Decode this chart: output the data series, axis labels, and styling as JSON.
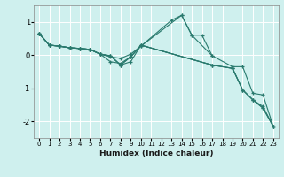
{
  "xlabel": "Humidex (Indice chaleur)",
  "bg_color": "#cff0ee",
  "grid_color": "#ffffff",
  "line_color": "#2a7a6e",
  "xlim": [
    -0.5,
    23.5
  ],
  "ylim": [
    -2.5,
    1.5
  ],
  "yticks": [
    -2,
    -1,
    0,
    1
  ],
  "xtick_labels": [
    "0",
    "1",
    "2",
    "3",
    "4",
    "5",
    "6",
    "7",
    "8",
    "9",
    "10",
    "11",
    "12",
    "13",
    "14",
    "15",
    "16",
    "17",
    "18",
    "19",
    "20",
    "21",
    "22",
    "23"
  ],
  "xtick_vals": [
    0,
    1,
    2,
    3,
    4,
    5,
    6,
    7,
    8,
    9,
    10,
    11,
    12,
    13,
    14,
    15,
    16,
    17,
    18,
    19,
    20,
    21,
    22,
    23
  ],
  "series": [
    {
      "x": [
        0,
        1,
        2,
        3,
        4,
        5,
        6,
        7,
        8,
        9,
        10,
        13,
        14,
        15,
        16,
        17
      ],
      "y": [
        0.65,
        0.3,
        0.27,
        0.22,
        0.2,
        0.17,
        0.03,
        -0.05,
        -0.1,
        0.03,
        0.27,
        1.05,
        1.2,
        0.6,
        0.6,
        -0.02
      ]
    },
    {
      "x": [
        0,
        1,
        2,
        3,
        4,
        5,
        6,
        7,
        8,
        9,
        10,
        14,
        15,
        17,
        19,
        20,
        21,
        22,
        23
      ],
      "y": [
        0.65,
        0.3,
        0.27,
        0.22,
        0.2,
        0.17,
        0.03,
        -0.2,
        -0.25,
        -0.05,
        0.27,
        1.2,
        0.6,
        -0.02,
        -0.35,
        -0.35,
        -1.15,
        -1.2,
        -2.15
      ]
    },
    {
      "x": [
        0,
        1,
        2,
        3,
        4,
        5,
        6,
        7,
        8,
        9,
        10,
        17,
        19,
        20,
        21,
        22,
        23
      ],
      "y": [
        0.65,
        0.3,
        0.27,
        0.22,
        0.2,
        0.17,
        0.03,
        -0.02,
        -0.3,
        -0.2,
        0.3,
        -0.3,
        -0.4,
        -1.05,
        -1.35,
        -1.55,
        -2.15
      ]
    },
    {
      "x": [
        0,
        1,
        2,
        3,
        4,
        5,
        6,
        7,
        8,
        9,
        10,
        17,
        19,
        20,
        21,
        22,
        23
      ],
      "y": [
        0.65,
        0.3,
        0.27,
        0.22,
        0.2,
        0.17,
        0.03,
        -0.02,
        -0.3,
        -0.05,
        0.3,
        -0.3,
        -0.4,
        -1.05,
        -1.35,
        -1.6,
        -2.15
      ]
    },
    {
      "x": [
        0,
        1,
        2,
        3,
        4,
        5,
        6,
        7,
        8,
        9,
        10,
        17,
        19,
        20,
        21,
        22,
        23
      ],
      "y": [
        0.65,
        0.3,
        0.27,
        0.22,
        0.2,
        0.17,
        0.03,
        -0.02,
        -0.3,
        -0.05,
        0.3,
        -0.3,
        -0.4,
        -1.05,
        -1.35,
        -1.6,
        -2.15
      ]
    }
  ]
}
